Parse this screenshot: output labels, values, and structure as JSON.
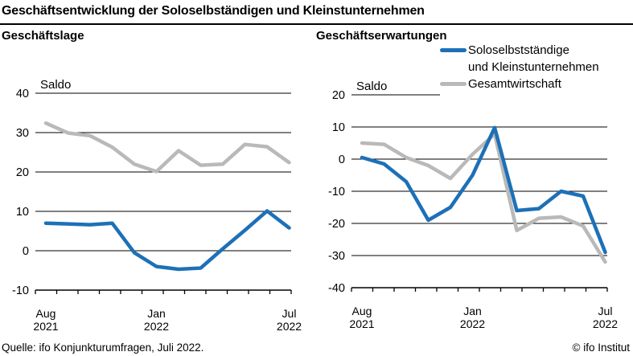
{
  "header": {
    "title": "Geschäftsentwicklung der Soloselbständigen und Kleinstunternehmen"
  },
  "legend": {
    "position": "top-right",
    "items": [
      {
        "lines": [
          "Soloselbstständige",
          "und Kleinstunternehmen"
        ],
        "color": "#1d70b7",
        "swatch": "thick-line"
      },
      {
        "lines": [
          "Gesamtwirtschaft"
        ],
        "color": "#b9b9b9",
        "swatch": "thick-line"
      }
    ]
  },
  "footer": {
    "source": "Quelle: ifo Konjunkturumfragen, Juli 2022.",
    "copyright": "© ifo Institut"
  },
  "colors": {
    "series_blue": "#1d70b7",
    "series_gray": "#b9b9b9",
    "axis": "#000000",
    "background": "#ffffff"
  },
  "chart_data": [
    {
      "type": "line",
      "title": "Geschäftslage",
      "ylabel": "Saldo",
      "grid": true,
      "ylim": [
        -10,
        40
      ],
      "yticks": [
        40,
        30,
        20,
        10,
        0,
        -10
      ],
      "x": [
        "Aug 2021",
        "Sep 2021",
        "Okt 2021",
        "Nov 2021",
        "Dez 2021",
        "Jan 2022",
        "Feb 2022",
        "Mär 2022",
        "Apr 2022",
        "Mai 2022",
        "Jun 2022",
        "Jul 2022"
      ],
      "x_tick_labels": [
        {
          "index": 0,
          "lines": [
            "Aug",
            "2021"
          ]
        },
        {
          "index": 5,
          "lines": [
            "Jan",
            "2022"
          ]
        },
        {
          "index": 11,
          "lines": [
            "Jul",
            "2022"
          ]
        }
      ],
      "series": [
        {
          "name": "Soloselbstständige und Kleinstunternehmen",
          "color": "#1d70b7",
          "values": [
            7,
            6.8,
            6.6,
            7,
            -0.5,
            -4,
            -4.7,
            -4.4,
            0.5,
            5.2,
            10.1,
            5.8
          ]
        },
        {
          "name": "Gesamtwirtschaft",
          "color": "#b9b9b9",
          "values": [
            32.4,
            29.9,
            29.2,
            26.3,
            22,
            20.1,
            25.4,
            21.7,
            22,
            27,
            26.4,
            22.4
          ]
        }
      ]
    },
    {
      "type": "line",
      "title": "Geschäftserwartungen",
      "ylabel": "Saldo",
      "grid": true,
      "ylim": [
        -40,
        20
      ],
      "yticks": [
        20,
        10,
        0,
        -10,
        -20,
        -30,
        -40
      ],
      "x": [
        "Aug 2021",
        "Sep 2021",
        "Okt 2021",
        "Nov 2021",
        "Dez 2021",
        "Jan 2022",
        "Feb 2022",
        "Mär 2022",
        "Apr 2022",
        "Mai 2022",
        "Jun 2022",
        "Jul 2022"
      ],
      "x_tick_labels": [
        {
          "index": 0,
          "lines": [
            "Aug",
            "2021"
          ]
        },
        {
          "index": 5,
          "lines": [
            "Jan",
            "2022"
          ]
        },
        {
          "index": 11,
          "lines": [
            "Jul",
            "2022"
          ]
        }
      ],
      "series": [
        {
          "name": "Soloselbstständige und Kleinstunternehmen",
          "color": "#1d70b7",
          "values": [
            0.5,
            -1.5,
            -7,
            -19,
            -15,
            -5,
            9.8,
            -16,
            -15.4,
            -10,
            -11.5,
            -29
          ]
        },
        {
          "name": "Gesamtwirtschaft",
          "color": "#b9b9b9",
          "values": [
            5,
            4.6,
            0.5,
            -2,
            -6,
            1.5,
            7.8,
            -22.2,
            -18.4,
            -18,
            -20.8,
            -32
          ]
        }
      ]
    }
  ]
}
